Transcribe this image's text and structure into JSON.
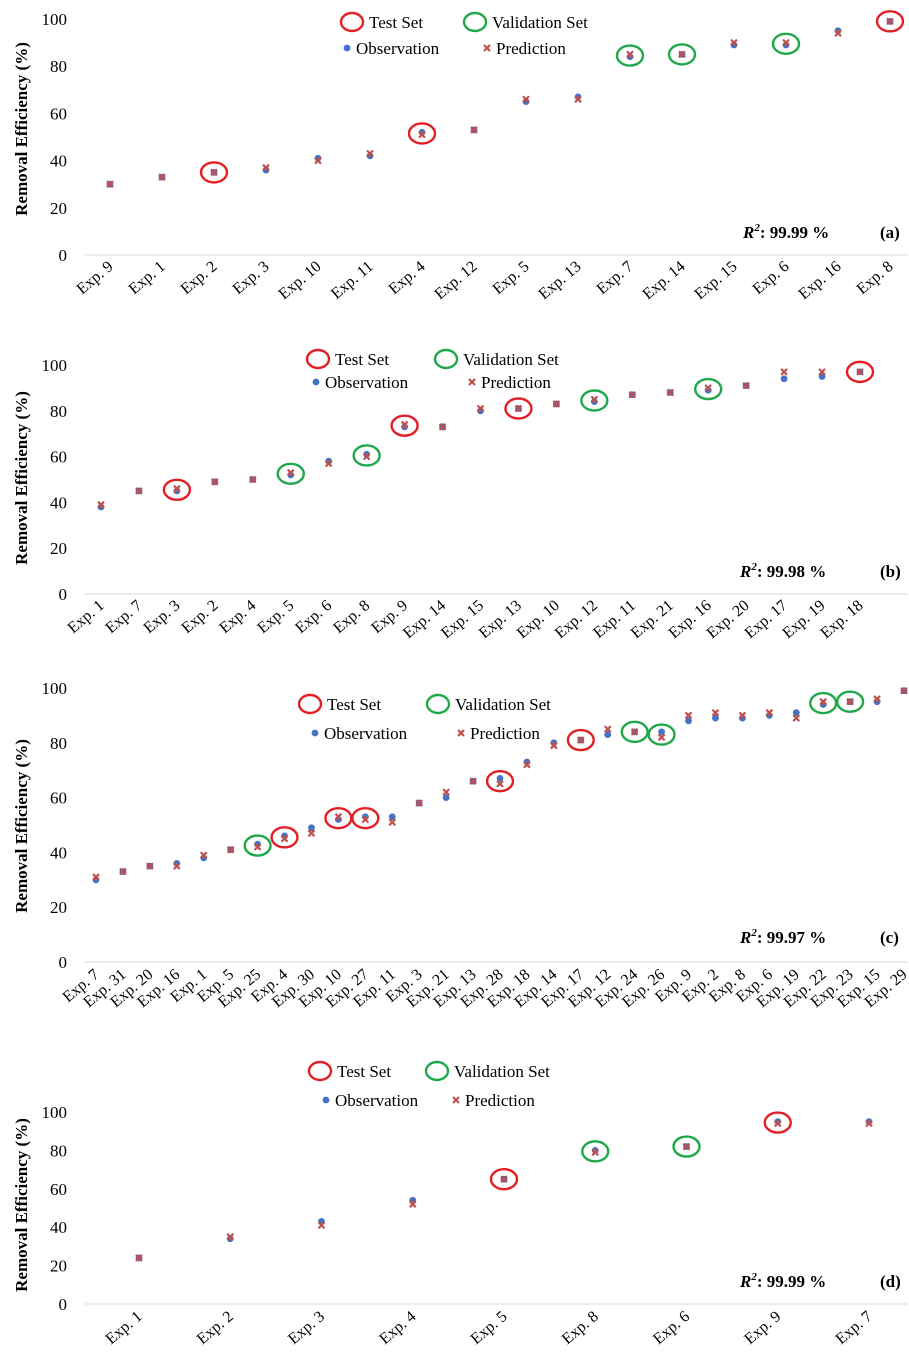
{
  "figure": {
    "y_axis_label": "Removal Efficiency (%)",
    "legend": {
      "test_set": "Test Set",
      "validation_set": "Validation Set",
      "observation": "Observation",
      "prediction": "Prediction"
    },
    "colors": {
      "observation": "#4472C4",
      "prediction": "#C0504D",
      "test_circle": "#E31E24",
      "validation_circle": "#1FA84A"
    }
  },
  "chart_data": [
    {
      "type": "scatter",
      "panel_label": "(a)",
      "r2_prefix": "R",
      "r2_sup": "2",
      "r2_value": ": 99.99 %",
      "ylim": [
        0,
        100
      ],
      "yticks": [
        "0",
        "20",
        "40",
        "60",
        "80",
        "100"
      ],
      "categories": [
        "Exp. 9",
        "Exp. 1",
        "Exp. 2",
        "Exp. 3",
        "Exp. 10",
        "Exp. 11",
        "Exp. 4",
        "Exp. 12",
        "Exp. 5",
        "Exp. 13",
        "Exp. 7",
        "Exp. 14",
        "Exp. 15",
        "Exp. 6",
        "Exp. 16",
        "Exp. 8"
      ],
      "observation": [
        30,
        33,
        35,
        36,
        41,
        42,
        52,
        53,
        65,
        67,
        84,
        85,
        89,
        89,
        95,
        99
      ],
      "prediction": [
        30,
        33,
        35,
        37,
        40,
        43,
        51,
        53,
        66,
        66,
        85,
        85,
        90,
        90,
        94,
        99
      ],
      "test_set": [
        "Exp. 2",
        "Exp. 4",
        "Exp. 8"
      ],
      "validation_set": [
        "Exp. 7",
        "Exp. 14",
        "Exp. 6"
      ]
    },
    {
      "type": "scatter",
      "panel_label": "(b)",
      "r2_prefix": "R",
      "r2_sup": "2",
      "r2_value": ": 99.98 %",
      "ylim": [
        0,
        100
      ],
      "yticks": [
        "0",
        "20",
        "40",
        "60",
        "80",
        "100"
      ],
      "categories": [
        "Exp. 1",
        "Exp. 7",
        "Exp. 3",
        "Exp. 2",
        "Exp. 4",
        "Exp. 5",
        "Exp. 6",
        "Exp. 8",
        "Exp. 9",
        "Exp. 14",
        "Exp. 15",
        "Exp. 13",
        "Exp. 10",
        "Exp. 12",
        "Exp. 11",
        "Exp. 21",
        "Exp. 16",
        "Exp. 20",
        "Exp. 17",
        "Exp. 19",
        "Exp. 18"
      ],
      "observation": [
        38,
        45,
        45,
        49,
        50,
        52,
        58,
        61,
        73,
        73,
        80,
        81,
        83,
        84,
        87,
        88,
        89,
        91,
        94,
        95,
        97
      ],
      "prediction": [
        39,
        45,
        46,
        49,
        50,
        53,
        57,
        60,
        74,
        73,
        81,
        81,
        83,
        85,
        87,
        88,
        90,
        91,
        97,
        97,
        97
      ],
      "test_set": [
        "Exp. 3",
        "Exp. 9",
        "Exp. 13",
        "Exp. 18"
      ],
      "validation_set": [
        "Exp. 5",
        "Exp. 8",
        "Exp. 12",
        "Exp. 16"
      ]
    },
    {
      "type": "scatter",
      "panel_label": "(c)",
      "r2_prefix": "R",
      "r2_sup": "2",
      "r2_value": ": 99.97 %",
      "ylim": [
        0,
        100
      ],
      "yticks": [
        "0",
        "20",
        "40",
        "60",
        "80",
        "100"
      ],
      "categories": [
        "Exp. 7",
        "Exp. 31",
        "Exp. 20",
        "Exp. 16",
        "Exp. 1",
        "Exp. 5",
        "Exp. 25",
        "Exp. 4",
        "Exp. 30",
        "Exp. 10",
        "Exp. 27",
        "Exp. 11",
        "Exp. 3",
        "Exp. 21",
        "Exp. 13",
        "Exp. 28",
        "Exp. 18",
        "Exp. 14",
        "Exp. 17",
        "Exp. 12",
        "Exp. 24",
        "Exp. 26",
        "Exp. 9",
        "Exp. 2",
        "Exp. 8",
        "Exp. 6",
        "Exp. 19",
        "Exp. 22",
        "Exp. 23",
        "Exp. 15",
        "Exp. 29"
      ],
      "observation": [
        30,
        33,
        35,
        36,
        38,
        41,
        43,
        46,
        49,
        52,
        53,
        53,
        58,
        60,
        66,
        67,
        73,
        80,
        81,
        83,
        84,
        84,
        88,
        89,
        89,
        90,
        91,
        94,
        95,
        95,
        99
      ],
      "prediction": [
        31,
        33,
        35,
        35,
        39,
        41,
        42,
        45,
        47,
        53,
        52,
        51,
        58,
        62,
        66,
        65,
        72,
        79,
        81,
        85,
        84,
        82,
        90,
        91,
        90,
        91,
        89,
        95,
        95,
        96,
        99
      ],
      "test_set": [
        "Exp. 4",
        "Exp. 10",
        "Exp. 27",
        "Exp. 28",
        "Exp. 17"
      ],
      "validation_set": [
        "Exp. 25",
        "Exp. 24",
        "Exp. 26",
        "Exp. 22",
        "Exp. 23"
      ]
    },
    {
      "type": "scatter",
      "panel_label": "(d)",
      "r2_prefix": "R",
      "r2_sup": "2",
      "r2_value": ": 99.99 %",
      "ylim": [
        0,
        100
      ],
      "yticks": [
        "0",
        "20",
        "40",
        "60",
        "80",
        "100"
      ],
      "categories": [
        "Exp. 1",
        "Exp. 2",
        "Exp. 3",
        "Exp. 4",
        "Exp. 5",
        "Exp. 8",
        "Exp. 6",
        "Exp. 9",
        "Exp. 7"
      ],
      "observation": [
        24,
        34,
        43,
        54,
        65,
        80,
        82,
        95,
        95
      ],
      "prediction": [
        24,
        35,
        41,
        52,
        65,
        79,
        82,
        94,
        94
      ],
      "test_set": [
        "Exp. 5",
        "Exp. 9"
      ],
      "validation_set": [
        "Exp. 8",
        "Exp. 6"
      ]
    }
  ]
}
